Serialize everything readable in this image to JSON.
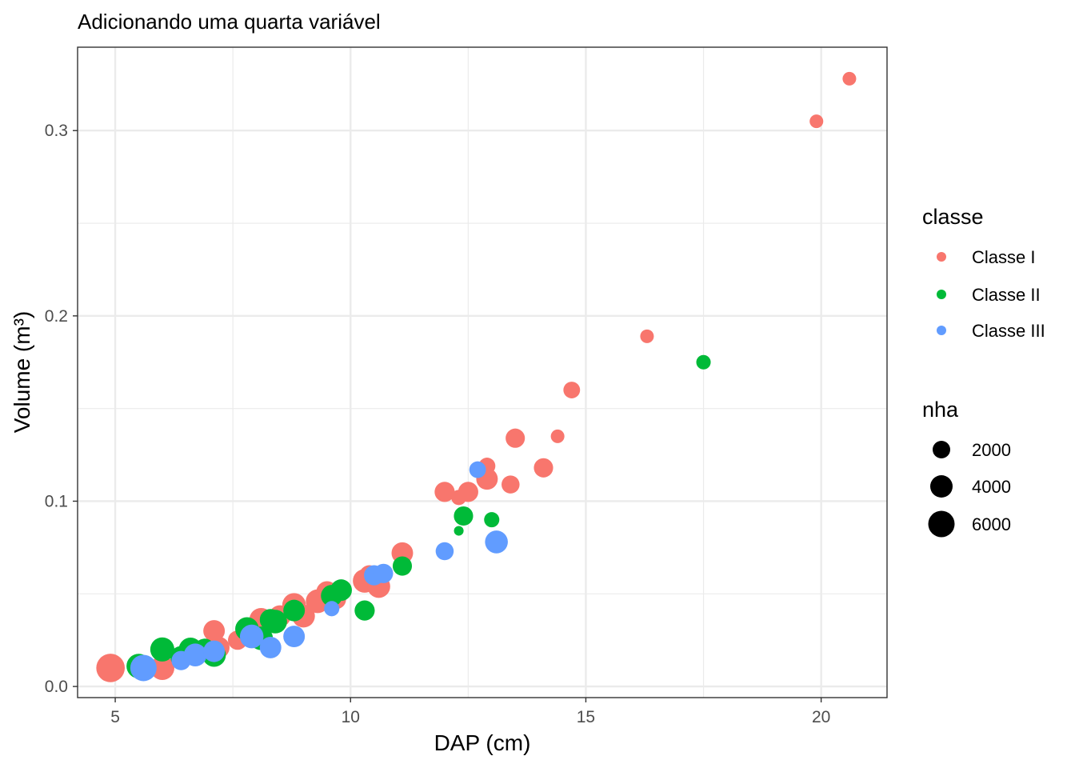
{
  "chart_data": {
    "type": "scatter",
    "title": "Adicionando uma quarta variável",
    "xlabel": "DAP (cm)",
    "ylabel": "Volume (m³)",
    "xlim": [
      4.2,
      21.4
    ],
    "ylim": [
      -0.006,
      0.345
    ],
    "xticks": [
      5,
      10,
      15,
      20
    ],
    "xtick_labels": [
      "5",
      "10",
      "15",
      "20"
    ],
    "yticks": [
      0.0,
      0.1,
      0.2,
      0.3
    ],
    "ytick_labels": [
      "0.0",
      "0.1",
      "0.2",
      "0.3"
    ],
    "grid": true,
    "legend_placement": "right",
    "color_legend": {
      "title": "classe",
      "entries": [
        {
          "label": "Classe I",
          "color": "#F8766D"
        },
        {
          "label": "Classe II",
          "color": "#00BA38"
        },
        {
          "label": "Classe III",
          "color": "#619CFF"
        }
      ]
    },
    "size_legend": {
      "title": "nha",
      "entries": [
        {
          "label": "2000",
          "value": 2000
        },
        {
          "label": "4000",
          "value": 4000
        },
        {
          "label": "6000",
          "value": 6000
        }
      ]
    },
    "series": [
      {
        "name": "Classe I",
        "color": "#F8766D",
        "points": [
          {
            "x": 4.9,
            "y": 0.01,
            "nha": 7000
          },
          {
            "x": 6.0,
            "y": 0.01,
            "nha": 5000
          },
          {
            "x": 7.1,
            "y": 0.03,
            "nha": 4000
          },
          {
            "x": 7.2,
            "y": 0.021,
            "nha": 4000
          },
          {
            "x": 7.6,
            "y": 0.025,
            "nha": 3200
          },
          {
            "x": 8.1,
            "y": 0.036,
            "nha": 4800
          },
          {
            "x": 8.5,
            "y": 0.038,
            "nha": 4000
          },
          {
            "x": 8.8,
            "y": 0.044,
            "nha": 4800
          },
          {
            "x": 9.0,
            "y": 0.038,
            "nha": 4500
          },
          {
            "x": 9.3,
            "y": 0.046,
            "nha": 4800
          },
          {
            "x": 9.5,
            "y": 0.051,
            "nha": 4000
          },
          {
            "x": 9.7,
            "y": 0.047,
            "nha": 3200
          },
          {
            "x": 10.3,
            "y": 0.057,
            "nha": 4800
          },
          {
            "x": 10.4,
            "y": 0.06,
            "nha": 3500
          },
          {
            "x": 10.6,
            "y": 0.054,
            "nha": 4500
          },
          {
            "x": 11.1,
            "y": 0.072,
            "nha": 4000
          },
          {
            "x": 12.0,
            "y": 0.105,
            "nha": 3500
          },
          {
            "x": 12.3,
            "y": 0.102,
            "nha": 2000
          },
          {
            "x": 12.5,
            "y": 0.105,
            "nha": 3500
          },
          {
            "x": 12.9,
            "y": 0.119,
            "nha": 2400
          },
          {
            "x": 12.9,
            "y": 0.112,
            "nha": 4000
          },
          {
            "x": 13.4,
            "y": 0.109,
            "nha": 2800
          },
          {
            "x": 13.5,
            "y": 0.134,
            "nha": 3200
          },
          {
            "x": 14.1,
            "y": 0.118,
            "nha": 3200
          },
          {
            "x": 14.4,
            "y": 0.135,
            "nha": 1600
          },
          {
            "x": 14.7,
            "y": 0.16,
            "nha": 2400
          },
          {
            "x": 16.3,
            "y": 0.189,
            "nha": 1600
          },
          {
            "x": 19.9,
            "y": 0.305,
            "nha": 1600
          },
          {
            "x": 20.6,
            "y": 0.328,
            "nha": 1600
          }
        ]
      },
      {
        "name": "Classe II",
        "color": "#00BA38",
        "points": [
          {
            "x": 5.5,
            "y": 0.011,
            "nha": 5200
          },
          {
            "x": 6.0,
            "y": 0.02,
            "nha": 5000
          },
          {
            "x": 6.4,
            "y": 0.016,
            "nha": 4000
          },
          {
            "x": 6.6,
            "y": 0.02,
            "nha": 4800
          },
          {
            "x": 6.9,
            "y": 0.02,
            "nha": 4000
          },
          {
            "x": 7.1,
            "y": 0.017,
            "nha": 4800
          },
          {
            "x": 7.8,
            "y": 0.031,
            "nha": 4800
          },
          {
            "x": 8.1,
            "y": 0.026,
            "nha": 4800
          },
          {
            "x": 8.3,
            "y": 0.036,
            "nha": 4000
          },
          {
            "x": 8.4,
            "y": 0.035,
            "nha": 4800
          },
          {
            "x": 8.8,
            "y": 0.041,
            "nha": 4000
          },
          {
            "x": 9.6,
            "y": 0.049,
            "nha": 4000
          },
          {
            "x": 9.8,
            "y": 0.052,
            "nha": 4000
          },
          {
            "x": 10.3,
            "y": 0.041,
            "nha": 3500
          },
          {
            "x": 11.1,
            "y": 0.065,
            "nha": 3200
          },
          {
            "x": 12.3,
            "y": 0.084,
            "nha": 800
          },
          {
            "x": 12.4,
            "y": 0.092,
            "nha": 3200
          },
          {
            "x": 13.0,
            "y": 0.09,
            "nha": 2000
          },
          {
            "x": 17.5,
            "y": 0.175,
            "nha": 1800
          }
        ]
      },
      {
        "name": "Classe III",
        "color": "#619CFF",
        "points": [
          {
            "x": 5.6,
            "y": 0.01,
            "nha": 6000
          },
          {
            "x": 6.4,
            "y": 0.014,
            "nha": 3200
          },
          {
            "x": 6.7,
            "y": 0.017,
            "nha": 4500
          },
          {
            "x": 7.1,
            "y": 0.019,
            "nha": 4000
          },
          {
            "x": 7.9,
            "y": 0.027,
            "nha": 4800
          },
          {
            "x": 8.3,
            "y": 0.021,
            "nha": 4000
          },
          {
            "x": 8.8,
            "y": 0.027,
            "nha": 4000
          },
          {
            "x": 9.6,
            "y": 0.042,
            "nha": 2000
          },
          {
            "x": 10.5,
            "y": 0.06,
            "nha": 3500
          },
          {
            "x": 10.7,
            "y": 0.061,
            "nha": 3200
          },
          {
            "x": 12.0,
            "y": 0.073,
            "nha": 2800
          },
          {
            "x": 12.7,
            "y": 0.117,
            "nha": 2400
          },
          {
            "x": 13.1,
            "y": 0.078,
            "nha": 4500
          }
        ]
      }
    ]
  }
}
